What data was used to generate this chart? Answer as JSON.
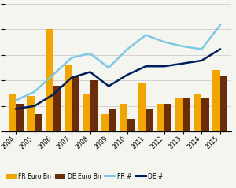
{
  "years": [
    2004,
    2005,
    2006,
    2007,
    2008,
    2009,
    2010,
    2011,
    2012,
    2013,
    2014,
    2015
  ],
  "fr_euro_bn": [
    7.5,
    7.0,
    20,
    13,
    7.5,
    3.5,
    5.5,
    9.5,
    5.5,
    6.5,
    7.5,
    12
  ],
  "de_euro_bn": [
    5.5,
    3.5,
    9,
    11,
    10,
    4.5,
    2.5,
    4.5,
    5.5,
    6.5,
    6.5,
    11
  ],
  "fr_count": [
    22,
    28,
    40,
    52,
    55,
    45,
    58,
    68,
    63,
    60,
    58,
    75
  ],
  "de_count": [
    16,
    18,
    26,
    38,
    42,
    32,
    40,
    46,
    46,
    48,
    50,
    58
  ],
  "fr_bar_color": "#f0a500",
  "de_bar_color": "#6b2c0a",
  "fr_line_color": "#7ec8e3",
  "de_line_color": "#00205b",
  "background_color": "#f5f5f0",
  "grid_color": "#cccccc",
  "bar_width": 0.4,
  "left_ylim": [
    0,
    25
  ],
  "right_ylim": [
    0,
    90
  ]
}
